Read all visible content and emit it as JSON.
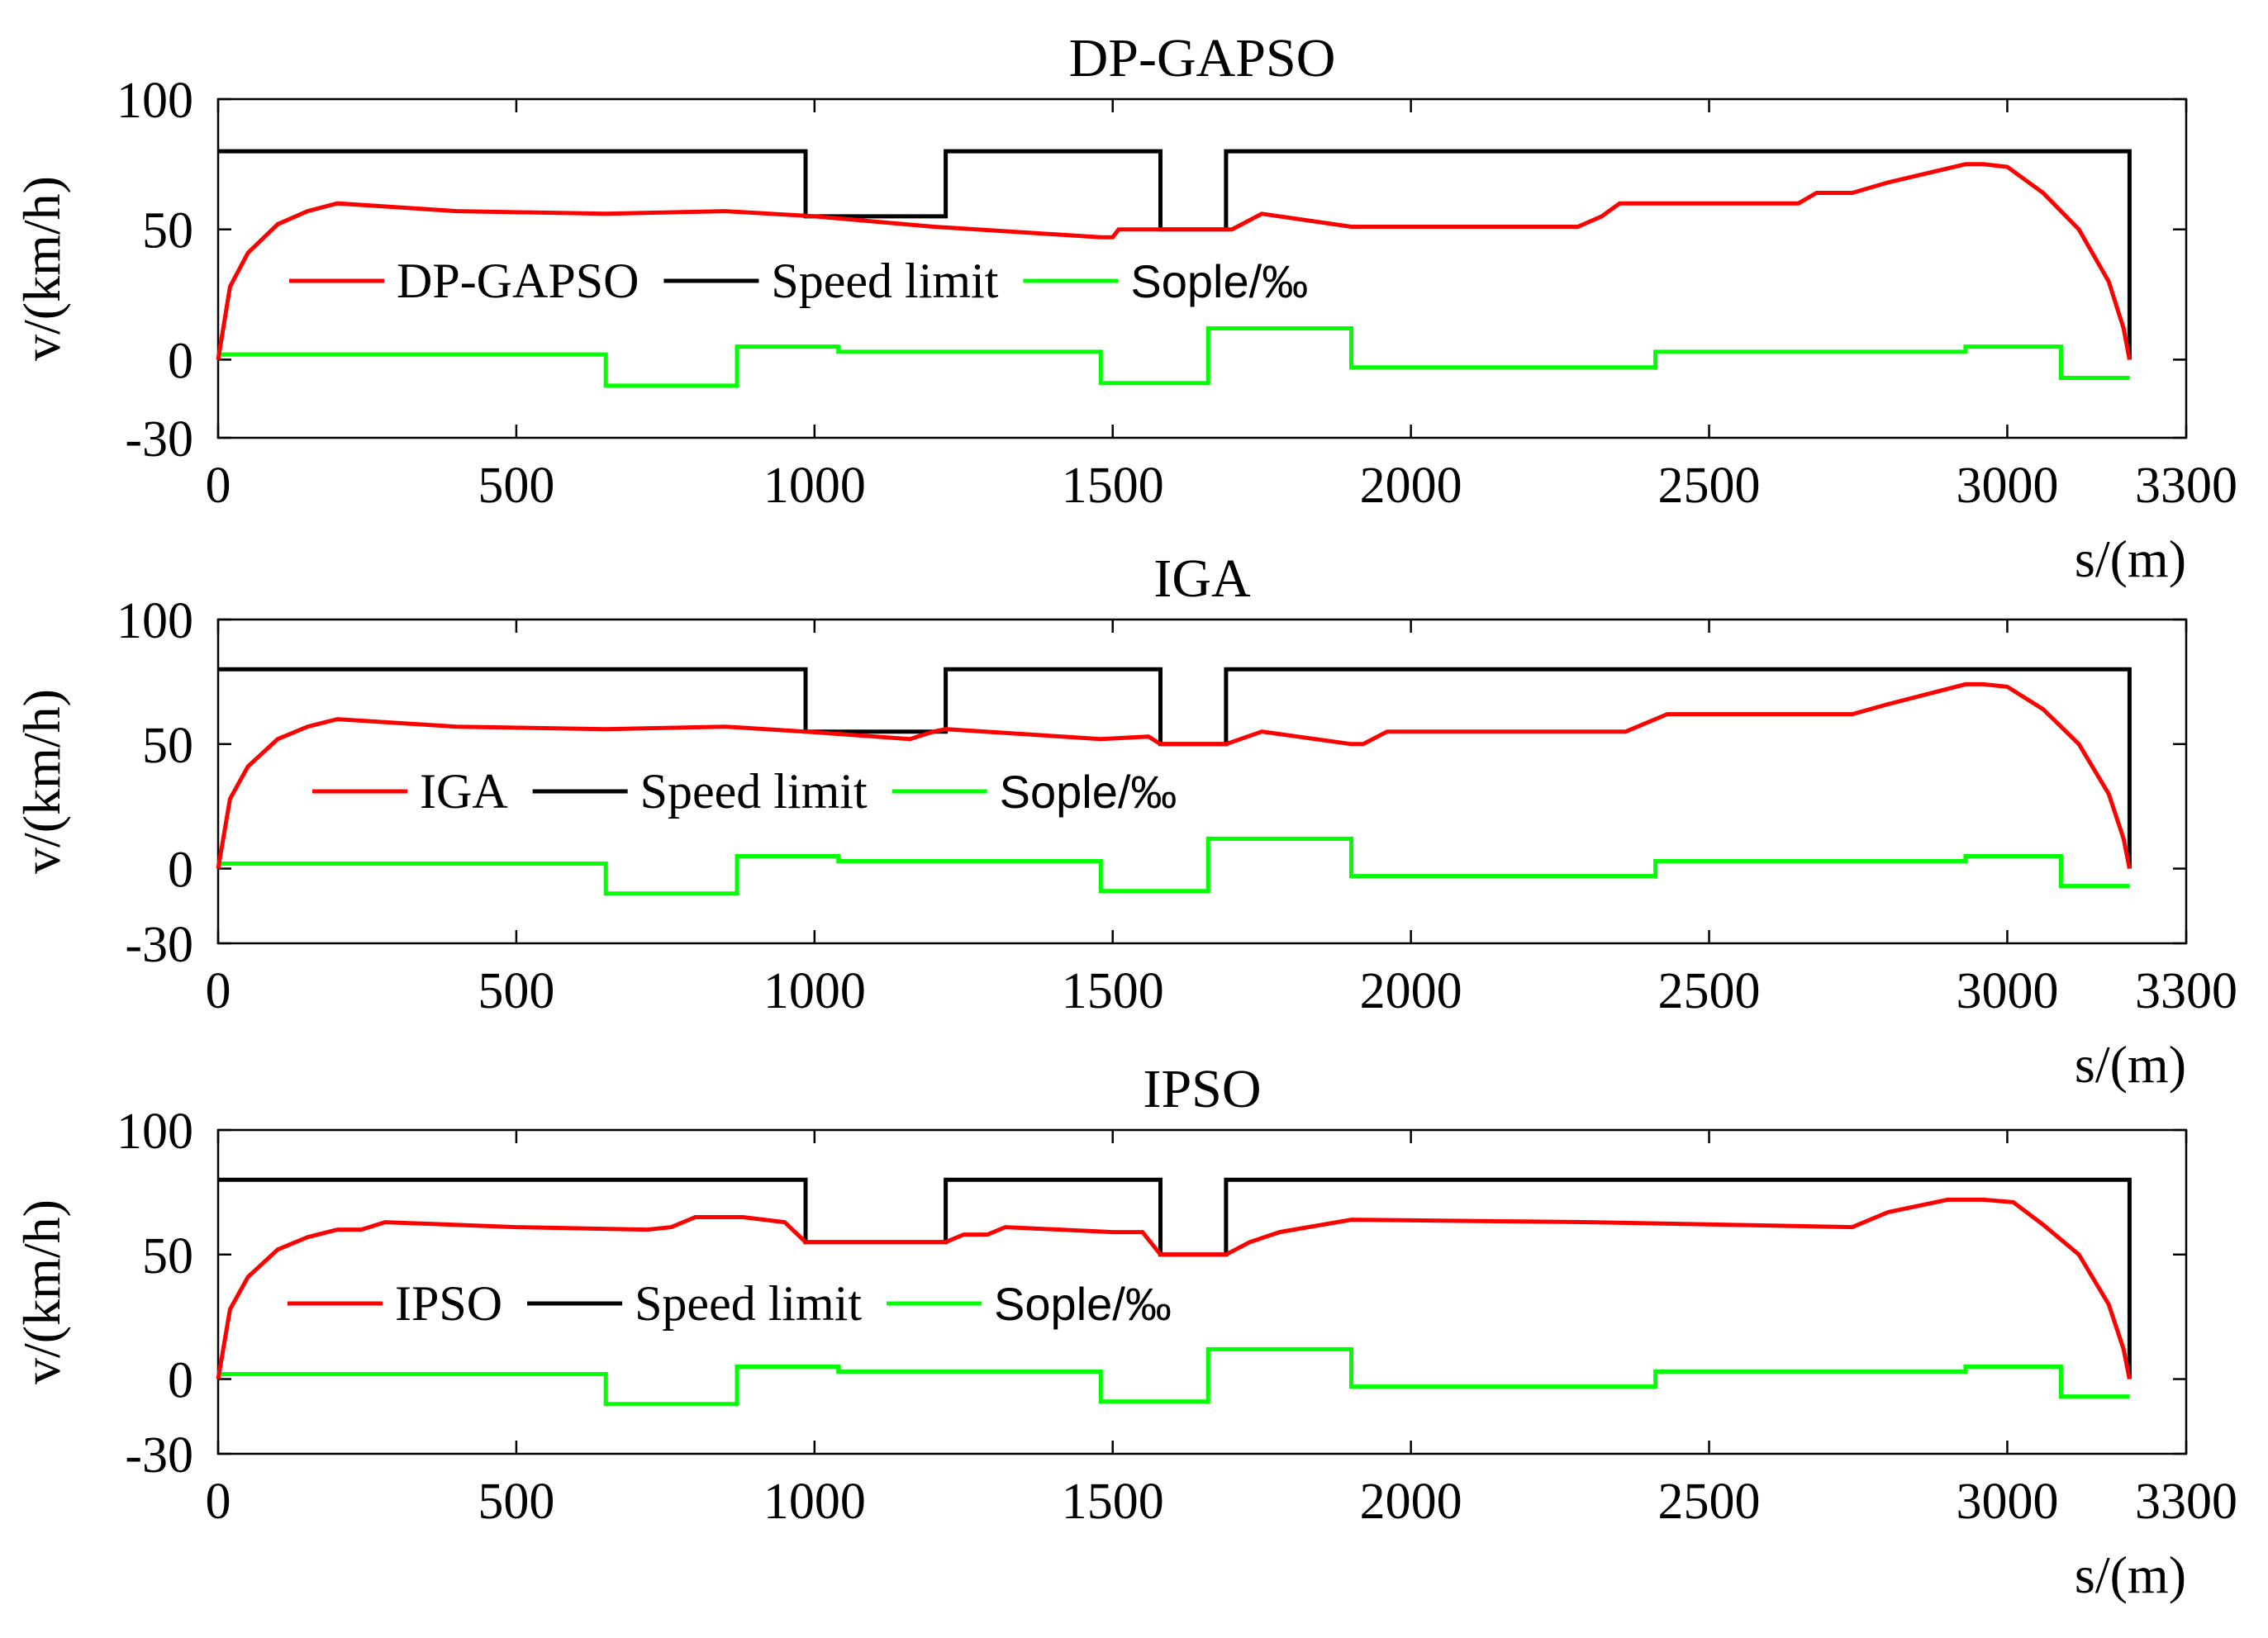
{
  "chart_data": [
    {
      "type": "line",
      "title": "DP-GAPSO",
      "xlabel": "s/(m)",
      "ylabel": "v/(km/h)",
      "xlim": [
        0,
        3300
      ],
      "ylim": [
        -30,
        100
      ],
      "xticks": [
        "0",
        "500",
        "1000",
        "1500",
        "2000",
        "2500",
        "3000",
        "3300"
      ],
      "yticks": [
        "100",
        "50",
        "0",
        "-30"
      ],
      "legend": [
        "DP-GAPSO",
        "Speed limit",
        "Sople/‰"
      ],
      "series": [
        {
          "name": "DP-GAPSO",
          "color": "#ff0000",
          "x": [
            0,
            20,
            50,
            100,
            150,
            200,
            400,
            650,
            850,
            1000,
            1200,
            1480,
            1500,
            1510,
            1700,
            1750,
            1900,
            2100,
            2280,
            2320,
            2350,
            2650,
            2680,
            2740,
            2800,
            2930,
            2960,
            3000,
            3060,
            3120,
            3170,
            3195,
            3205
          ],
          "y": [
            0,
            28,
            41,
            52,
            57,
            60,
            57,
            56,
            57,
            55,
            51,
            47,
            47,
            50,
            50,
            56,
            51,
            51,
            51,
            55,
            60,
            60,
            64,
            64,
            68,
            75,
            75,
            74,
            64,
            50,
            30,
            12,
            0
          ]
        },
        {
          "name": "Speed limit",
          "color": "#000000",
          "x": [
            0,
            985,
            985,
            1220,
            1220,
            1580,
            1580,
            1690,
            1690,
            3205,
            3205
          ],
          "y": [
            80,
            80,
            55,
            55,
            80,
            80,
            50,
            50,
            80,
            80,
            0
          ]
        },
        {
          "name": "Sople/‰",
          "color": "#00ff00",
          "x": [
            0,
            420,
            650,
            650,
            870,
            870,
            1040,
            1040,
            1480,
            1480,
            1660,
            1660,
            1900,
            1900,
            2410,
            2410,
            2930,
            2930,
            3090,
            3090,
            3205
          ],
          "y": [
            2,
            2,
            2,
            -10,
            -10,
            5,
            5,
            3,
            3,
            -9,
            -9,
            12,
            12,
            -3,
            -3,
            3,
            3,
            5,
            5,
            -7,
            -7
          ]
        }
      ]
    },
    {
      "type": "line",
      "title": "IGA",
      "xlabel": "s/(m)",
      "ylabel": "v/(km/h)",
      "xlim": [
        0,
        3300
      ],
      "ylim": [
        -30,
        100
      ],
      "xticks": [
        "0",
        "500",
        "1000",
        "1500",
        "2000",
        "2500",
        "3000",
        "3300"
      ],
      "yticks": [
        "100",
        "50",
        "0",
        "-30"
      ],
      "legend": [
        "IGA",
        "Speed limit",
        "Sople/‰"
      ],
      "series": [
        {
          "name": "IGA",
          "color": "#ff0000",
          "x": [
            0,
            20,
            50,
            100,
            150,
            200,
            400,
            650,
            850,
            985,
            1160,
            1200,
            1220,
            1480,
            1560,
            1580,
            1690,
            1750,
            1900,
            1920,
            1960,
            2360,
            2430,
            2740,
            2800,
            2930,
            2960,
            3000,
            3060,
            3120,
            3170,
            3195,
            3205
          ],
          "y": [
            0,
            28,
            41,
            52,
            57,
            60,
            57,
            56,
            57,
            55,
            52,
            55,
            56,
            52,
            53,
            50,
            50,
            55,
            50,
            50,
            55,
            55,
            62,
            62,
            66,
            74,
            74,
            73,
            64,
            50,
            30,
            12,
            0
          ]
        },
        {
          "name": "Speed limit",
          "color": "#000000",
          "x": [
            0,
            985,
            985,
            1220,
            1220,
            1580,
            1580,
            1690,
            1690,
            3205,
            3205
          ],
          "y": [
            80,
            80,
            55,
            55,
            80,
            80,
            50,
            50,
            80,
            80,
            0
          ]
        },
        {
          "name": "Sople/‰",
          "color": "#00ff00",
          "x": [
            0,
            420,
            650,
            650,
            870,
            870,
            1040,
            1040,
            1480,
            1480,
            1660,
            1660,
            1900,
            1900,
            2410,
            2410,
            2930,
            2930,
            3090,
            3090,
            3205
          ],
          "y": [
            2,
            2,
            2,
            -10,
            -10,
            5,
            5,
            3,
            3,
            -9,
            -9,
            12,
            12,
            -3,
            -3,
            3,
            3,
            5,
            5,
            -7,
            -7
          ]
        }
      ]
    },
    {
      "type": "line",
      "title": "IPSO",
      "xlabel": "s/(m)",
      "ylabel": "v/(km/h)",
      "xlim": [
        0,
        3300
      ],
      "ylim": [
        -30,
        100
      ],
      "xticks": [
        "0",
        "500",
        "1000",
        "1500",
        "2000",
        "2500",
        "3000",
        "3300"
      ],
      "yticks": [
        "100",
        "50",
        "0",
        "-30"
      ],
      "legend": [
        "IPSO",
        "Speed limit",
        "Sople/‰"
      ],
      "series": [
        {
          "name": "IPSO",
          "color": "#ff0000",
          "x": [
            0,
            20,
            50,
            100,
            150,
            200,
            240,
            280,
            500,
            720,
            760,
            800,
            880,
            950,
            985,
            1220,
            1250,
            1290,
            1320,
            1500,
            1550,
            1580,
            1690,
            1730,
            1780,
            1900,
            2300,
            2740,
            2800,
            2900,
            2960,
            3010,
            3060,
            3120,
            3170,
            3195,
            3205
          ],
          "y": [
            0,
            28,
            41,
            52,
            57,
            60,
            60,
            63,
            61,
            60,
            61,
            65,
            65,
            63,
            55,
            55,
            58,
            58,
            61,
            59,
            59,
            50,
            50,
            55,
            59,
            64,
            63,
            61,
            67,
            72,
            72,
            71,
            62,
            50,
            30,
            12,
            0
          ]
        },
        {
          "name": "Speed limit",
          "color": "#000000",
          "x": [
            0,
            985,
            985,
            1220,
            1220,
            1580,
            1580,
            1690,
            1690,
            3205,
            3205
          ],
          "y": [
            80,
            80,
            55,
            55,
            80,
            80,
            50,
            50,
            80,
            80,
            0
          ]
        },
        {
          "name": "Sople/‰",
          "color": "#00ff00",
          "x": [
            0,
            420,
            650,
            650,
            870,
            870,
            1040,
            1040,
            1480,
            1480,
            1660,
            1660,
            1900,
            1900,
            2410,
            2410,
            2930,
            2930,
            3090,
            3090,
            3205
          ],
          "y": [
            2,
            2,
            2,
            -10,
            -10,
            5,
            5,
            3,
            3,
            -9,
            -9,
            12,
            12,
            -3,
            -3,
            3,
            3,
            5,
            5,
            -7,
            -7
          ]
        }
      ]
    }
  ]
}
